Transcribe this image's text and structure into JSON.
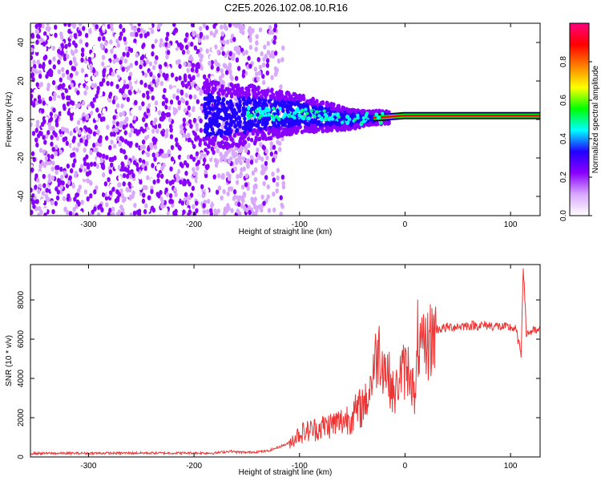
{
  "title": "C2E5.2026.102.08.10.R16",
  "chart_data": [
    {
      "type": "heatmap",
      "xlabel": "Height of straight line (km)",
      "ylabel": "Frequency (Hz)",
      "xlim": [
        -355,
        128
      ],
      "ylim": [
        -50,
        50
      ],
      "xticks": [
        -300,
        -200,
        -100,
        0,
        100
      ],
      "yticks": [
        -40,
        -20,
        0,
        20,
        40
      ],
      "colorbar": {
        "label": "Normalized spectral amplitude",
        "range": [
          0,
          1
        ],
        "ticks": [
          "0.0",
          "0.2",
          "0.4",
          "0.6",
          "0.8"
        ],
        "colors": [
          "#ffffff",
          "#d8a8ff",
          "#8a00ff",
          "#2200ff",
          "#00ffff",
          "#00ff00",
          "#ffff00",
          "#ff8000",
          "#ff0000",
          "#ff0080"
        ]
      },
      "trace_center_hz": [
        {
          "x": -150,
          "y": 3
        },
        {
          "x": -100,
          "y": 3
        },
        {
          "x": -50,
          "y": 0
        },
        {
          "x": -25,
          "y": 1
        },
        {
          "x": 0,
          "y": 2
        },
        {
          "x": 50,
          "y": 2
        },
        {
          "x": 100,
          "y": 2
        },
        {
          "x": 128,
          "y": 2
        }
      ]
    },
    {
      "type": "line",
      "xlabel": "Height of straight line (km)",
      "ylabel": "SNR (10 * v/v)",
      "xlim": [
        -355,
        128
      ],
      "ylim": [
        0,
        9800
      ],
      "xticks": [
        -300,
        -200,
        -100,
        0,
        100
      ],
      "yticks": [
        0,
        2000,
        4000,
        6000,
        8000
      ],
      "color": "#ee3333",
      "x": [
        -355,
        -250,
        -180,
        -165,
        -160,
        -150,
        -130,
        -110,
        -100,
        -80,
        -60,
        -45,
        -35,
        -30,
        -25,
        -15,
        -10,
        -5,
        0,
        5,
        10,
        12,
        15,
        20,
        30,
        40,
        60,
        80,
        95,
        100,
        105,
        110,
        112,
        115,
        120,
        128
      ],
      "y": [
        180,
        200,
        200,
        300,
        250,
        230,
        300,
        700,
        1200,
        1500,
        1800,
        2300,
        3000,
        4500,
        5500,
        4000,
        3000,
        4200,
        4400,
        4500,
        2600,
        6000,
        5200,
        5600,
        6500,
        6600,
        6700,
        6700,
        6600,
        6600,
        6500,
        5200,
        9800,
        6300,
        6400,
        6400
      ]
    }
  ]
}
